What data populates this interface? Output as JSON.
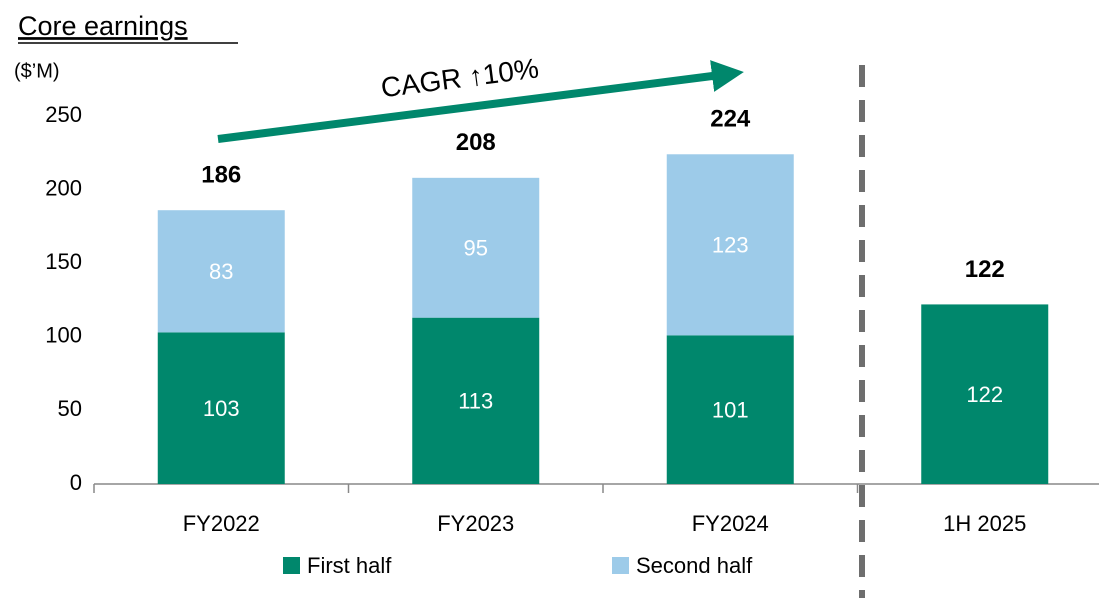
{
  "chart_data": {
    "type": "bar",
    "stacked": true,
    "title": "Core earnings",
    "y_label": "($’M)",
    "annotation": "CAGR ↑10%",
    "categories": [
      "FY2022",
      "FY2023",
      "FY2024",
      "1H 2025"
    ],
    "series": [
      {
        "name": "First half",
        "color": "#00876c",
        "values": [
          103,
          113,
          101,
          122
        ]
      },
      {
        "name": "Second half",
        "color": "#9dcbe9",
        "values": [
          83,
          95,
          123,
          null
        ]
      }
    ],
    "totals": [
      186,
      208,
      224,
      122
    ],
    "ylim": [
      0,
      250
    ],
    "yticks": [
      0,
      50,
      100,
      150,
      200,
      250
    ],
    "grid": false,
    "legend": "bottom"
  }
}
